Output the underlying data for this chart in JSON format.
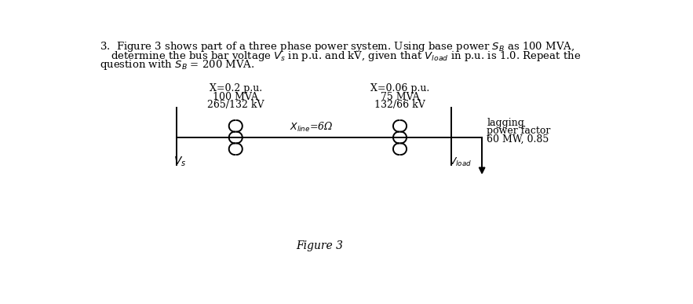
{
  "background_color": "#ffffff",
  "text_color": "#000000",
  "question_text_line1": "3.  Figure 3 shows part of a three phase power system. Using base power $S_B$ as 100 MVA,",
  "question_text_line2": "determine the bus bar voltage $V_s$ in p.u. and kV, given that $V_{load}$ in p.u. is 1.0. Repeat the",
  "question_text_line3": "question with $S_B$ = 200 MVA.",
  "figure_caption": "Figure 3",
  "vs_label": "$V_s$",
  "vload_label": "$V_{load}$",
  "xline_label": "$X_{line}$=6Ω",
  "transformer1_label_line1": "265/132 kV",
  "transformer1_label_line2": "100 MVA",
  "transformer1_label_line3": "X=0.2 p.u.",
  "transformer2_label_line1": "132/66 kV",
  "transformer2_label_line2": "75 MVA",
  "transformer2_label_line3": "X=0.06 p.u.",
  "load_label_line1": "60 MW, 0.85",
  "load_label_line2": "power factor",
  "load_label_line3": "lagging",
  "font_size_text": 9.5,
  "font_size_labels": 9,
  "font_size_caption": 10
}
